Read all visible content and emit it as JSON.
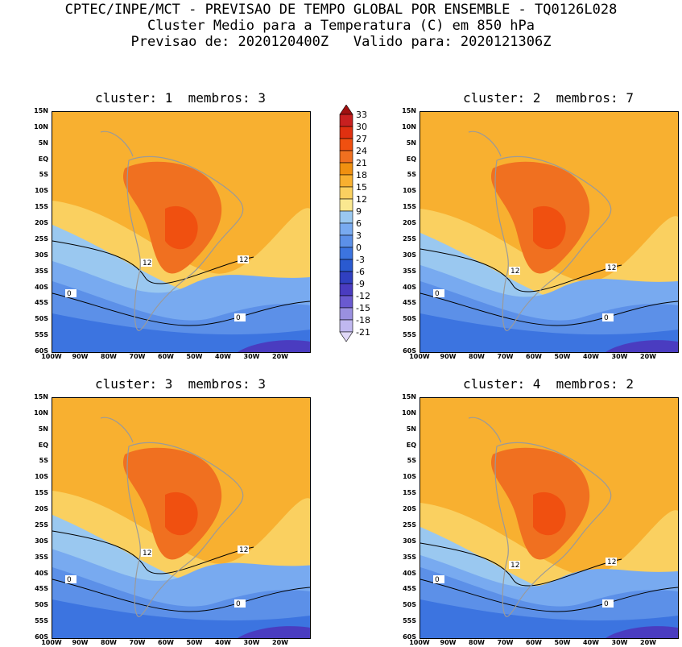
{
  "header": {
    "line1": "CPTEC/INPE/MCT - PREVISAO DE TEMPO GLOBAL POR ENSEMBLE - TQ0126L028",
    "line2": "Cluster Medio para a Temperatura (C) em 850 hPa",
    "line3": "Previsao de: 2020120400Z   Valido para: 2020121306Z"
  },
  "panels": [
    {
      "title": "cluster: 1  membros: 3",
      "contour_labels": [
        "12",
        "12",
        "0",
        "0"
      ]
    },
    {
      "title": "cluster: 2  membros: 7",
      "contour_labels": [
        "12",
        "12",
        "0",
        "0"
      ]
    },
    {
      "title": "cluster: 3  membros: 3",
      "contour_labels": [
        "12",
        "12",
        "0",
        "0"
      ]
    },
    {
      "title": "cluster: 4  membros: 2",
      "contour_labels": [
        "12",
        "12",
        "0",
        "0"
      ]
    }
  ],
  "lat_labels": [
    "15N",
    "10N",
    "5N",
    "EQ",
    "5S",
    "10S",
    "15S",
    "20S",
    "25S",
    "30S",
    "35S",
    "40S",
    "45S",
    "50S",
    "55S",
    "60S"
  ],
  "lon_labels": [
    "100W",
    "90W",
    "80W",
    "70W",
    "60W",
    "50W",
    "40W",
    "30W",
    "20W"
  ],
  "colorbar": {
    "labels": [
      "33",
      "30",
      "27",
      "24",
      "21",
      "18",
      "15",
      "12",
      "9",
      "6",
      "3",
      "0",
      "-3",
      "-6",
      "-9",
      "-12",
      "-15",
      "-18",
      "-21"
    ],
    "colors": [
      "#a01010",
      "#c82020",
      "#e03010",
      "#f05010",
      "#f07020",
      "#f09010",
      "#f8b030",
      "#fad060",
      "#fae890",
      "#9ac8f0",
      "#78aaf0",
      "#5c90e8",
      "#3c74e0",
      "#2a5ad0",
      "#3040c0",
      "#4a3cc0",
      "#6a5ad0",
      "#9a90e0",
      "#c0b8f0",
      "#e0d8f8"
    ]
  }
}
